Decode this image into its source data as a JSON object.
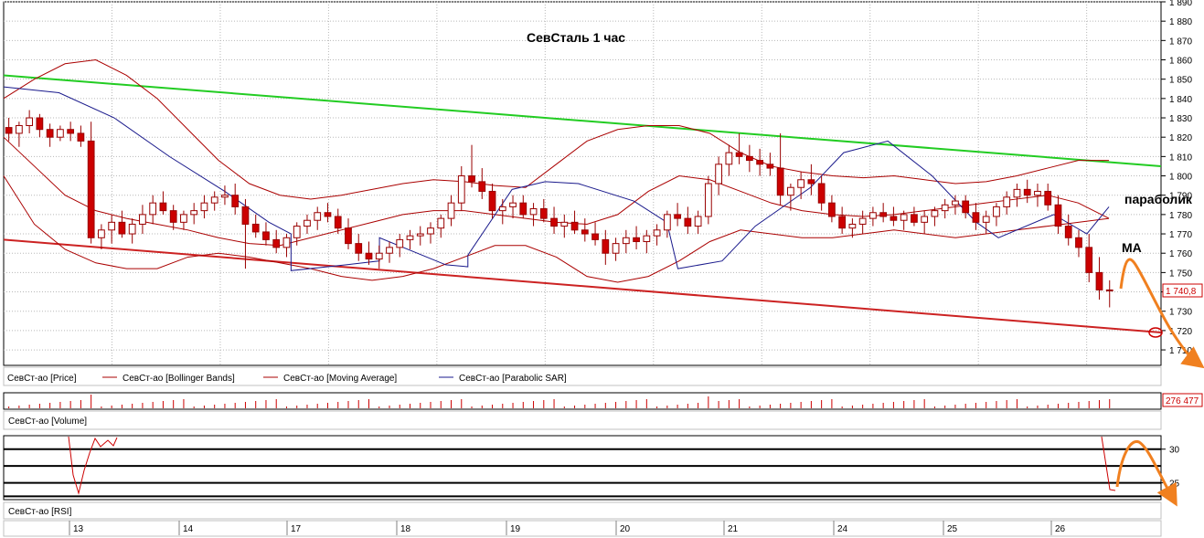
{
  "chart_data": {
    "type": "candlestick",
    "title": "СевСталь   1 час",
    "annotations": {
      "parabolic": "параболик",
      "ma": "МА"
    },
    "price_axis": {
      "ylim": [
        1702,
        1890
      ],
      "ticks": [
        "1 890",
        "1 880",
        "1 870",
        "1 860",
        "1 850",
        "1 840",
        "1 830",
        "1 820",
        "1 810",
        "1 800",
        "1 790",
        "1 780",
        "1 770",
        "1 760",
        "1 750",
        "1 740",
        "1 730",
        "1 720",
        "1 710"
      ],
      "tick_values": [
        1890,
        1880,
        1870,
        1860,
        1850,
        1840,
        1830,
        1820,
        1810,
        1800,
        1790,
        1780,
        1770,
        1760,
        1750,
        1740,
        1730,
        1720,
        1710
      ],
      "last_price_label": "1 740,8",
      "last_price": 1740.8
    },
    "x_axis": {
      "labels": [
        "13",
        "14",
        "17",
        "18",
        "19",
        "20",
        "21",
        "24",
        "25",
        "26"
      ]
    },
    "legend": [
      {
        "label": "СевСт-ао [Price]",
        "color": "#cc0000"
      },
      {
        "label": "СевСт-ао [Bollinger Bands]",
        "color": "#aa0000"
      },
      {
        "label": "СевСт-ао [Moving Average]",
        "color": "#aa0000"
      },
      {
        "label": "СевСт-ао [Parabolic SAR]",
        "color": "#1a1a8c"
      }
    ],
    "trendlines": [
      {
        "name": "resistance",
        "color": "#22cc22",
        "from": [
          0,
          1852
        ],
        "to": [
          1,
          1805
        ]
      },
      {
        "name": "support",
        "color": "#cc2222",
        "from": [
          0,
          1767
        ],
        "to": [
          1,
          1719
        ]
      }
    ],
    "candles": [
      [
        1825,
        1830,
        1818,
        1822
      ],
      [
        1822,
        1828,
        1815,
        1826
      ],
      [
        1826,
        1834,
        1822,
        1830
      ],
      [
        1830,
        1832,
        1820,
        1824
      ],
      [
        1824,
        1827,
        1815,
        1820
      ],
      [
        1820,
        1826,
        1818,
        1824
      ],
      [
        1824,
        1828,
        1818,
        1822
      ],
      [
        1822,
        1826,
        1815,
        1818
      ],
      [
        1818,
        1828,
        1765,
        1768
      ],
      [
        1768,
        1775,
        1762,
        1772
      ],
      [
        1772,
        1780,
        1765,
        1776
      ],
      [
        1776,
        1782,
        1768,
        1770
      ],
      [
        1770,
        1778,
        1765,
        1775
      ],
      [
        1775,
        1785,
        1770,
        1780
      ],
      [
        1780,
        1790,
        1775,
        1786
      ],
      [
        1786,
        1792,
        1780,
        1782
      ],
      [
        1782,
        1785,
        1772,
        1776
      ],
      [
        1776,
        1782,
        1772,
        1780
      ],
      [
        1780,
        1786,
        1775,
        1782
      ],
      [
        1782,
        1790,
        1778,
        1786
      ],
      [
        1786,
        1792,
        1782,
        1789
      ],
      [
        1789,
        1795,
        1785,
        1790
      ],
      [
        1790,
        1796,
        1780,
        1784
      ],
      [
        1784,
        1788,
        1752,
        1775
      ],
      [
        1775,
        1780,
        1768,
        1771
      ],
      [
        1771,
        1776,
        1764,
        1767
      ],
      [
        1767,
        1772,
        1760,
        1763
      ],
      [
        1763,
        1770,
        1758,
        1768
      ],
      [
        1768,
        1776,
        1764,
        1774
      ],
      [
        1774,
        1780,
        1770,
        1777
      ],
      [
        1777,
        1784,
        1772,
        1781
      ],
      [
        1781,
        1786,
        1776,
        1779
      ],
      [
        1779,
        1783,
        1770,
        1773
      ],
      [
        1773,
        1778,
        1762,
        1765
      ],
      [
        1765,
        1770,
        1756,
        1760
      ],
      [
        1760,
        1766,
        1754,
        1757
      ],
      [
        1757,
        1764,
        1752,
        1760
      ],
      [
        1760,
        1766,
        1755,
        1763
      ],
      [
        1763,
        1770,
        1758,
        1767
      ],
      [
        1767,
        1772,
        1762,
        1769
      ],
      [
        1769,
        1774,
        1764,
        1770
      ],
      [
        1770,
        1776,
        1765,
        1773
      ],
      [
        1773,
        1780,
        1768,
        1778
      ],
      [
        1778,
        1790,
        1774,
        1786
      ],
      [
        1786,
        1805,
        1782,
        1800
      ],
      [
        1800,
        1816,
        1794,
        1797
      ],
      [
        1797,
        1804,
        1788,
        1792
      ],
      [
        1792,
        1796,
        1778,
        1782
      ],
      [
        1782,
        1788,
        1775,
        1784
      ],
      [
        1784,
        1790,
        1778,
        1786
      ],
      [
        1786,
        1790,
        1778,
        1780
      ],
      [
        1780,
        1786,
        1774,
        1783
      ],
      [
        1783,
        1788,
        1776,
        1778
      ],
      [
        1778,
        1784,
        1770,
        1774
      ],
      [
        1774,
        1780,
        1768,
        1776
      ],
      [
        1776,
        1782,
        1770,
        1772
      ],
      [
        1772,
        1778,
        1766,
        1770
      ],
      [
        1770,
        1776,
        1764,
        1767
      ],
      [
        1767,
        1772,
        1754,
        1760
      ],
      [
        1760,
        1768,
        1756,
        1765
      ],
      [
        1765,
        1772,
        1760,
        1768
      ],
      [
        1768,
        1774,
        1762,
        1766
      ],
      [
        1766,
        1772,
        1760,
        1769
      ],
      [
        1769,
        1775,
        1764,
        1772
      ],
      [
        1772,
        1782,
        1768,
        1780
      ],
      [
        1780,
        1786,
        1774,
        1778
      ],
      [
        1778,
        1784,
        1770,
        1774
      ],
      [
        1774,
        1782,
        1770,
        1779
      ],
      [
        1779,
        1800,
        1775,
        1796
      ],
      [
        1796,
        1810,
        1790,
        1806
      ],
      [
        1806,
        1816,
        1800,
        1812
      ],
      [
        1812,
        1822,
        1806,
        1810
      ],
      [
        1810,
        1816,
        1802,
        1808
      ],
      [
        1808,
        1814,
        1800,
        1806
      ],
      [
        1806,
        1812,
        1800,
        1804
      ],
      [
        1804,
        1822,
        1785,
        1790
      ],
      [
        1790,
        1796,
        1782,
        1794
      ],
      [
        1794,
        1802,
        1788,
        1798
      ],
      [
        1798,
        1806,
        1790,
        1796
      ],
      [
        1796,
        1800,
        1782,
        1786
      ],
      [
        1786,
        1790,
        1776,
        1779
      ],
      [
        1779,
        1784,
        1770,
        1773
      ],
      [
        1773,
        1778,
        1768,
        1775
      ],
      [
        1775,
        1782,
        1770,
        1778
      ],
      [
        1778,
        1784,
        1774,
        1781
      ],
      [
        1781,
        1786,
        1776,
        1779
      ],
      [
        1779,
        1784,
        1774,
        1777
      ],
      [
        1777,
        1782,
        1772,
        1780
      ],
      [
        1780,
        1784,
        1774,
        1776
      ],
      [
        1776,
        1782,
        1770,
        1779
      ],
      [
        1779,
        1784,
        1774,
        1782
      ],
      [
        1782,
        1788,
        1778,
        1785
      ],
      [
        1785,
        1790,
        1780,
        1787
      ],
      [
        1787,
        1790,
        1778,
        1781
      ],
      [
        1781,
        1786,
        1772,
        1776
      ],
      [
        1776,
        1782,
        1770,
        1779
      ],
      [
        1779,
        1786,
        1774,
        1784
      ],
      [
        1784,
        1792,
        1780,
        1789
      ],
      [
        1789,
        1796,
        1784,
        1793
      ],
      [
        1793,
        1798,
        1786,
        1790
      ],
      [
        1790,
        1796,
        1784,
        1792
      ],
      [
        1792,
        1796,
        1782,
        1785
      ],
      [
        1785,
        1790,
        1770,
        1774
      ],
      [
        1774,
        1780,
        1764,
        1768
      ],
      [
        1768,
        1772,
        1758,
        1763
      ],
      [
        1763,
        1770,
        1745,
        1750
      ],
      [
        1750,
        1758,
        1736,
        1741
      ],
      [
        1741,
        1746,
        1732,
        1740.8
      ]
    ],
    "bollinger_upper": [
      1840,
      1850,
      1858,
      1860,
      1852,
      1840,
      1824,
      1808,
      1796,
      1790,
      1788,
      1790,
      1793,
      1796,
      1798,
      1797,
      1795,
      1794,
      1806,
      1818,
      1824,
      1826,
      1826,
      1822,
      1812,
      1805,
      1802,
      1800,
      1799,
      1800,
      1798,
      1796,
      1797,
      1800,
      1804,
      1808,
      1808
    ],
    "bollinger_lower": [
      1800,
      1775,
      1762,
      1755,
      1752,
      1752,
      1758,
      1760,
      1758,
      1755,
      1752,
      1748,
      1746,
      1748,
      1752,
      1758,
      1764,
      1764,
      1758,
      1748,
      1745,
      1748,
      1756,
      1766,
      1772,
      1770,
      1768,
      1768,
      1770,
      1772,
      1770,
      1768,
      1770,
      1772,
      1774,
      1776,
      1778
    ],
    "moving_average": [
      1820,
      1805,
      1790,
      1782,
      1778,
      1775,
      1772,
      1768,
      1765,
      1764,
      1768,
      1772,
      1776,
      1780,
      1782,
      1782,
      1780,
      1778,
      1776,
      1775,
      1780,
      1792,
      1800,
      1798,
      1792,
      1786,
      1782,
      1780,
      1779,
      1780,
      1782,
      1784,
      1786,
      1788,
      1790,
      1786,
      1778
    ],
    "parabolic_sar": [
      {
        "x": 0.0,
        "y": 1846
      },
      {
        "x": 0.05,
        "y": 1843
      },
      {
        "x": 0.1,
        "y": 1830
      },
      {
        "x": 0.15,
        "y": 1810
      },
      {
        "x": 0.2,
        "y": 1792
      },
      {
        "x": 0.24,
        "y": 1776
      },
      {
        "x": 0.26,
        "y": 1770
      },
      {
        "x": 0.26,
        "y": 1751
      },
      {
        "x": 0.31,
        "y": 1754
      },
      {
        "x": 0.34,
        "y": 1756
      },
      {
        "x": 0.34,
        "y": 1768
      },
      {
        "x": 0.4,
        "y": 1754
      },
      {
        "x": 0.42,
        "y": 1753
      },
      {
        "x": 0.42,
        "y": 1759
      },
      {
        "x": 0.46,
        "y": 1793
      },
      {
        "x": 0.49,
        "y": 1797
      },
      {
        "x": 0.52,
        "y": 1796
      },
      {
        "x": 0.57,
        "y": 1787
      },
      {
        "x": 0.6,
        "y": 1776
      },
      {
        "x": 0.61,
        "y": 1752
      },
      {
        "x": 0.65,
        "y": 1756
      },
      {
        "x": 0.68,
        "y": 1774
      },
      {
        "x": 0.73,
        "y": 1794
      },
      {
        "x": 0.76,
        "y": 1812
      },
      {
        "x": 0.8,
        "y": 1818
      },
      {
        "x": 0.84,
        "y": 1800
      },
      {
        "x": 0.88,
        "y": 1776
      },
      {
        "x": 0.9,
        "y": 1768
      },
      {
        "x": 0.95,
        "y": 1780
      },
      {
        "x": 0.98,
        "y": 1770
      },
      {
        "x": 1.0,
        "y": 1784
      }
    ],
    "volume": {
      "label": "СевСт-ао [Volume]",
      "last_value_label": "276 477",
      "last_value": 276477
    },
    "rsi": {
      "label": "СевСт-ао [RSI]",
      "ticks": [
        "30",
        "25"
      ],
      "tick_values": [
        30,
        25
      ],
      "ylim": [
        22.5,
        32
      ]
    }
  },
  "colors": {
    "grid": "#b8b8b8",
    "up_candle": "#ffffff",
    "down_candle": "#cc0000",
    "wick": "#990000",
    "resistance": "#22cc22",
    "support": "#cc2222",
    "bollinger": "#aa0000",
    "sar": "#1a1a8c",
    "forecast": "#f08020",
    "rsi_line": "#cc0000"
  }
}
